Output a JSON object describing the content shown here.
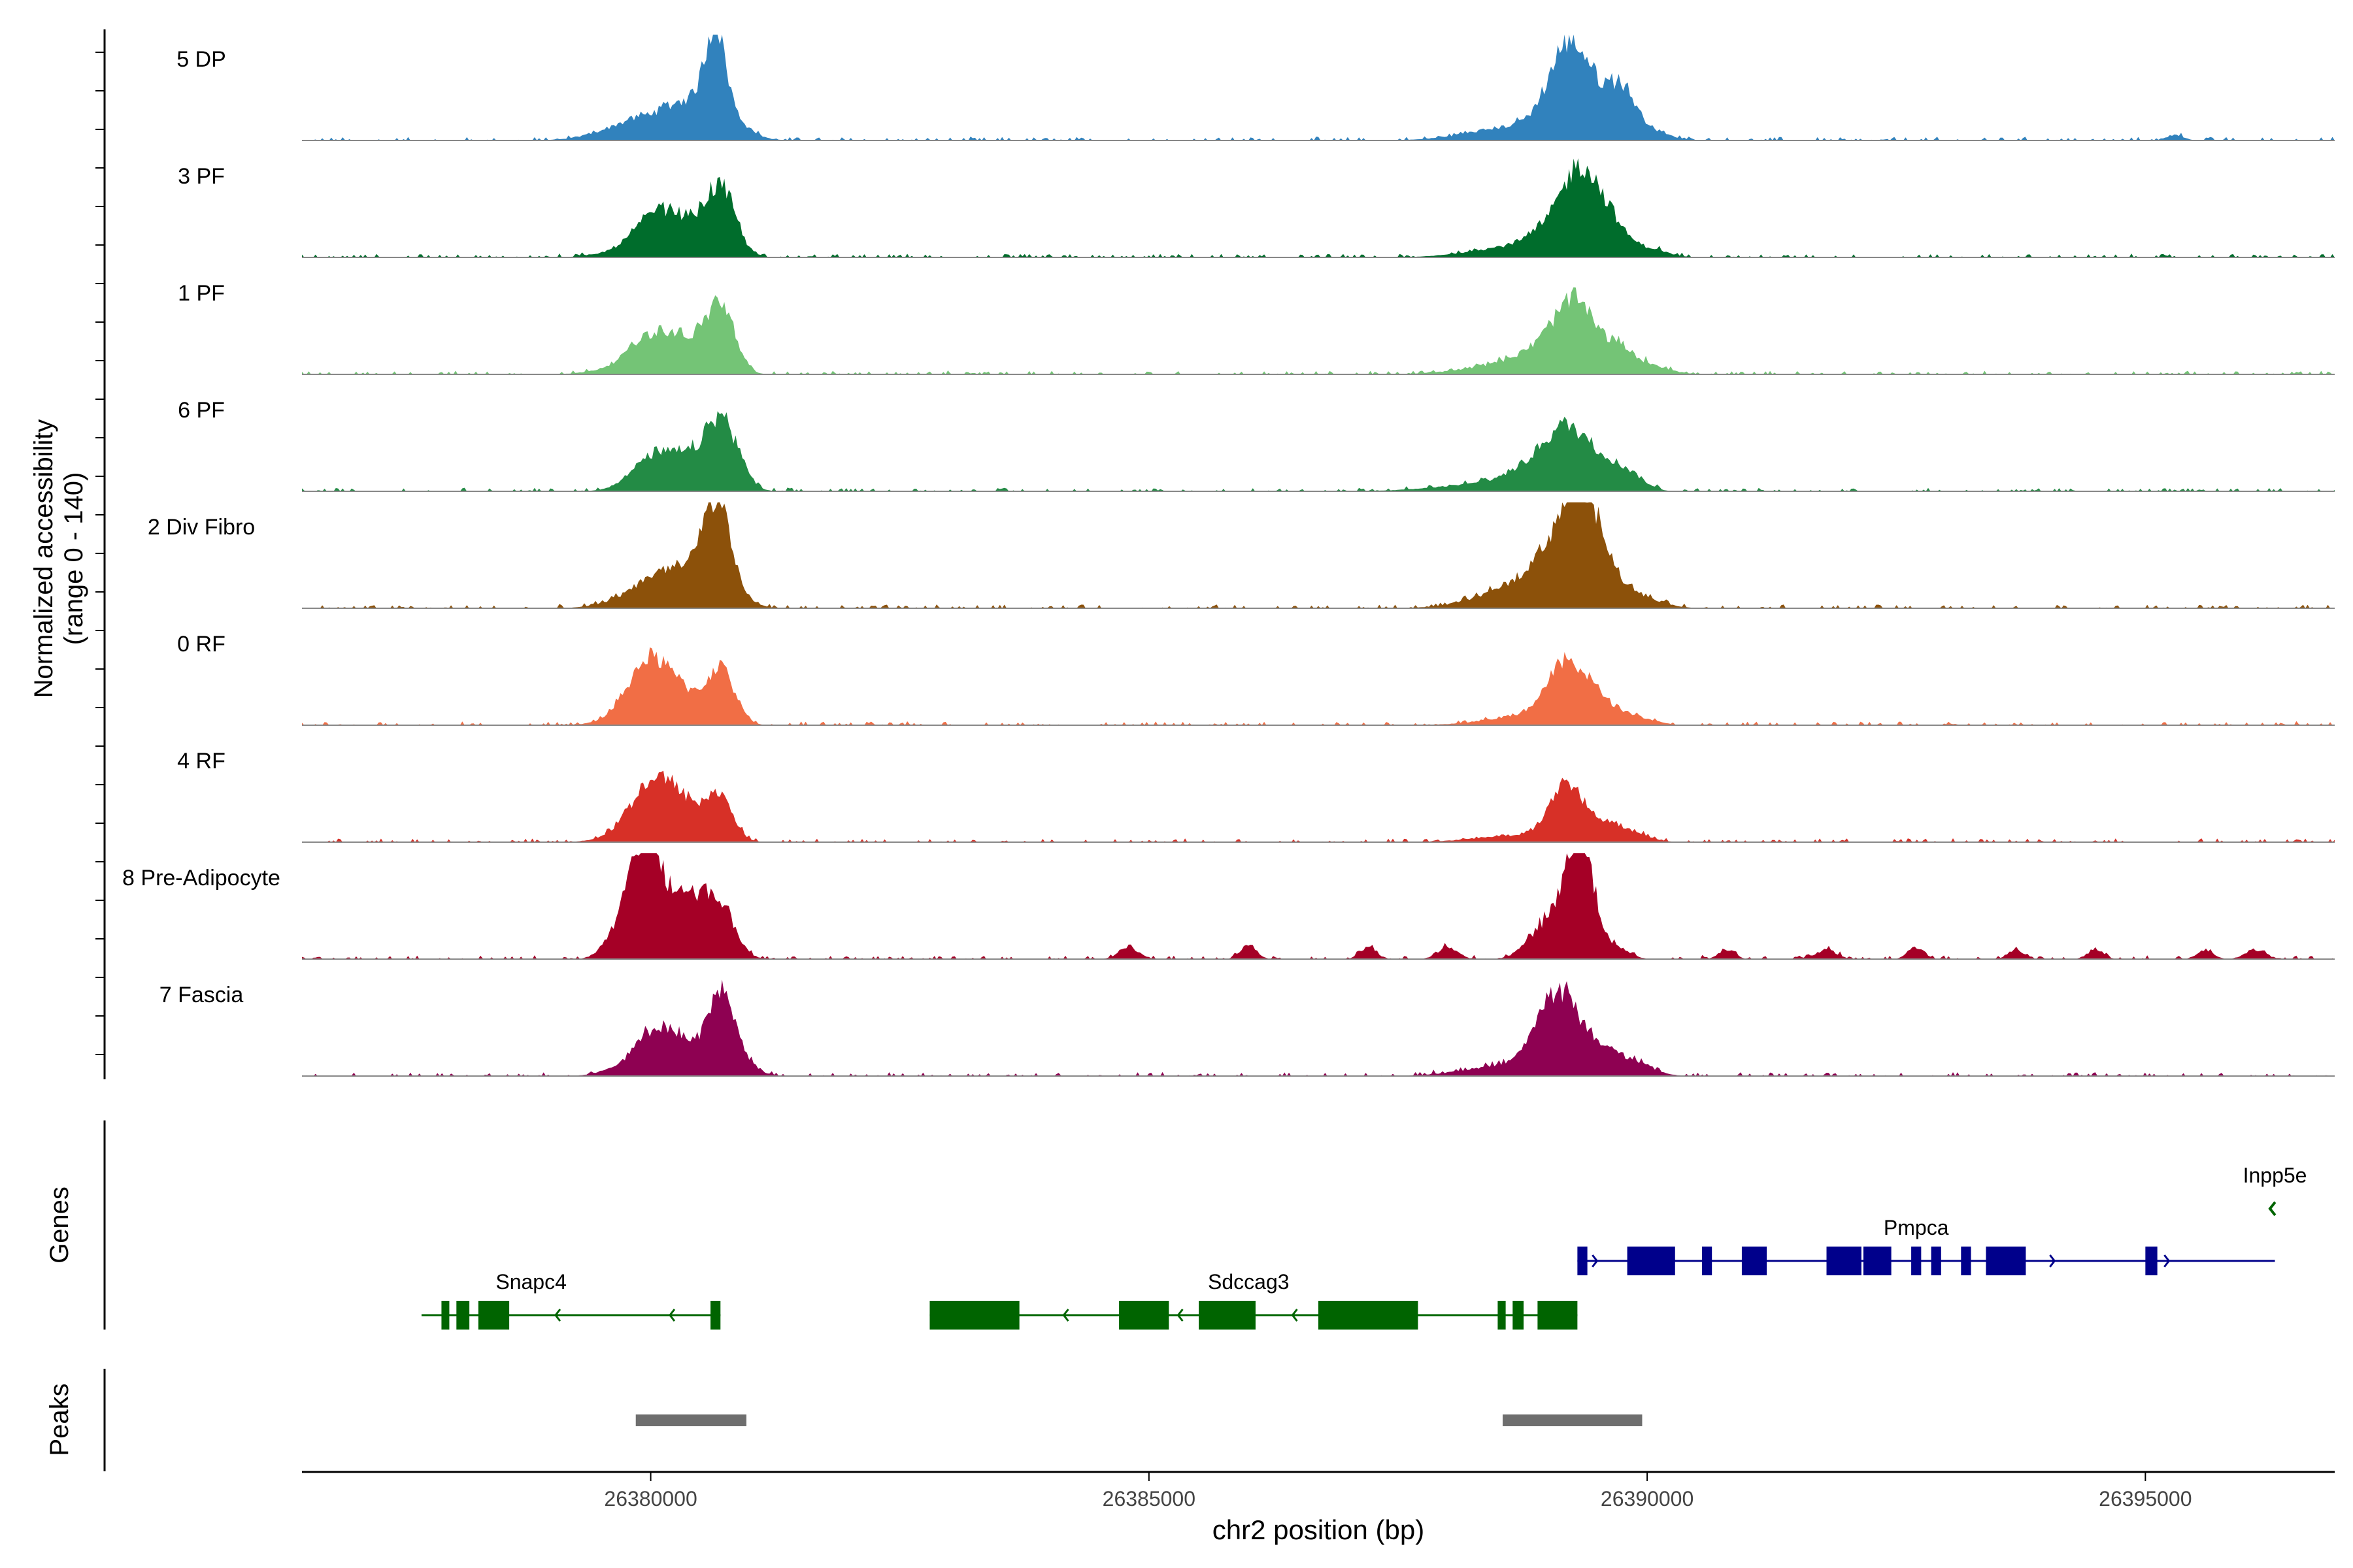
{
  "chart_data": {
    "type": "area",
    "title": "",
    "ylabel_line1": "Normalized accessibility",
    "ylabel_line2": "(range 0 - 140)",
    "yrange": [
      0,
      140
    ],
    "xlabel": "chr2 position (bp)",
    "xlim": [
      26376500,
      26396900
    ],
    "xticks": [
      26380000,
      26385000,
      26390000,
      26395000
    ],
    "xtick_labels": [
      "26380000",
      "26385000",
      "26390000",
      "26395000"
    ],
    "tracks": [
      {
        "name": "5 DP",
        "color": "#3182BD",
        "noise": [
          26376500,
          26396900
        ],
        "peaks": [
          [
            26379800,
            8,
            320
          ],
          [
            26380100,
            12,
            380
          ],
          [
            26380500,
            26,
            280
          ],
          [
            26380650,
            70,
            100
          ],
          [
            26380850,
            6,
            150
          ],
          [
            26388700,
            12,
            450
          ],
          [
            26389200,
            60,
            200
          ],
          [
            26389450,
            28,
            250
          ],
          [
            26389750,
            30,
            130
          ],
          [
            26390000,
            8,
            200
          ],
          [
            26395300,
            5,
            80
          ]
        ]
      },
      {
        "name": "3 PF",
        "color": "#006D2C",
        "noise": [
          26376500,
          26396900
        ],
        "peaks": [
          [
            26380100,
            32,
            220
          ],
          [
            26380400,
            14,
            160
          ],
          [
            26380700,
            58,
            150
          ],
          [
            26379900,
            8,
            300
          ],
          [
            26388600,
            8,
            400
          ],
          [
            26389100,
            22,
            250
          ],
          [
            26389350,
            62,
            180
          ],
          [
            26389650,
            22,
            140
          ],
          [
            26390000,
            8,
            180
          ]
        ]
      },
      {
        "name": "1 PF",
        "color": "#74C476",
        "noise": [
          26376500,
          26396900
        ],
        "peaks": [
          [
            26380050,
            30,
            230
          ],
          [
            26380400,
            18,
            170
          ],
          [
            26380700,
            58,
            140
          ],
          [
            26379800,
            6,
            300
          ],
          [
            26388700,
            10,
            450
          ],
          [
            26389050,
            18,
            250
          ],
          [
            26389300,
            48,
            190
          ],
          [
            26389700,
            18,
            150
          ],
          [
            26390000,
            8,
            200
          ]
        ]
      },
      {
        "name": "6 PF",
        "color": "#238B45",
        "noise": [
          26376500,
          26396900
        ],
        "peaks": [
          [
            26380050,
            30,
            230
          ],
          [
            26380400,
            18,
            170
          ],
          [
            26380700,
            58,
            150
          ],
          [
            26380900,
            8,
            120
          ],
          [
            26388400,
            6,
            500
          ],
          [
            26388800,
            12,
            250
          ],
          [
            26389200,
            50,
            230
          ],
          [
            26389600,
            16,
            180
          ],
          [
            26389850,
            10,
            150
          ]
        ]
      },
      {
        "name": "2 Div Fibro",
        "color": "#8C510A",
        "noise": [
          26376500,
          26396900
        ],
        "peaks": [
          [
            26379950,
            12,
            300
          ],
          [
            26380300,
            28,
            280
          ],
          [
            26380650,
            78,
            130
          ],
          [
            26380850,
            10,
            150
          ],
          [
            26388700,
            16,
            400
          ],
          [
            26389150,
            42,
            280
          ],
          [
            26389350,
            72,
            180
          ],
          [
            26389700,
            12,
            200
          ],
          [
            26390000,
            6,
            200
          ]
        ]
      },
      {
        "name": "0 RF",
        "color": "#F16E45",
        "noise": [
          26376500,
          26396900
        ],
        "peaks": [
          [
            26380000,
            52,
            210
          ],
          [
            26380350,
            18,
            160
          ],
          [
            26380700,
            48,
            140
          ],
          [
            26379800,
            6,
            250
          ],
          [
            26388800,
            8,
            400
          ],
          [
            26389200,
            48,
            200
          ],
          [
            26389550,
            14,
            180
          ],
          [
            26389900,
            6,
            180
          ]
        ]
      },
      {
        "name": "4 RF",
        "color": "#D73027",
        "noise": [
          26376500,
          26396900
        ],
        "peaks": [
          [
            26380050,
            50,
            220
          ],
          [
            26380400,
            20,
            160
          ],
          [
            26380700,
            38,
            130
          ],
          [
            26379800,
            6,
            250
          ],
          [
            26388700,
            6,
            400
          ],
          [
            26389200,
            48,
            170
          ],
          [
            26389600,
            12,
            160
          ],
          [
            26389850,
            6,
            180
          ]
        ]
      },
      {
        "name": "8 Pre-Adipocyte",
        "color": "#A50026",
        "noise": [
          26376500,
          26396900
        ],
        "peaks": [
          [
            26379900,
            75,
            150
          ],
          [
            26380200,
            48,
            260
          ],
          [
            26380500,
            20,
            200
          ],
          [
            26380700,
            30,
            150
          ],
          [
            26379600,
            10,
            120
          ],
          [
            26388900,
            18,
            150
          ],
          [
            26389200,
            48,
            160
          ],
          [
            26389350,
            80,
            120
          ],
          [
            26389700,
            10,
            120
          ],
          [
            26384800,
            10,
            100
          ],
          [
            26386000,
            12,
            80
          ],
          [
            26387200,
            10,
            80
          ],
          [
            26388000,
            10,
            100
          ],
          [
            26390800,
            8,
            80
          ],
          [
            26391800,
            8,
            100
          ],
          [
            26392700,
            10,
            80
          ],
          [
            26393700,
            8,
            80
          ],
          [
            26394500,
            8,
            80
          ],
          [
            26395600,
            8,
            80
          ],
          [
            26396100,
            8,
            100
          ]
        ]
      },
      {
        "name": "7 Fascia",
        "color": "#8E0152",
        "noise": [
          26376500,
          26396900
        ],
        "peaks": [
          [
            26379900,
            14,
            250
          ],
          [
            26380100,
            30,
            180
          ],
          [
            26380400,
            18,
            160
          ],
          [
            26380700,
            62,
            130
          ],
          [
            26380900,
            12,
            150
          ],
          [
            26388700,
            10,
            450
          ],
          [
            26389100,
            65,
            200
          ],
          [
            26389500,
            18,
            200
          ],
          [
            26389850,
            10,
            200
          ]
        ]
      }
    ],
    "genes_label": "Genes",
    "genes": [
      {
        "name": "Snapc4",
        "strand": "-",
        "color": "#006400",
        "start": 26377700,
        "end": 26380700,
        "label_pos": 26378800,
        "exons": [
          [
            26377900,
            26377960
          ],
          [
            26378050,
            26378180
          ],
          [
            26378270,
            26378580
          ],
          [
            26380600,
            26380700
          ]
        ],
        "row": 2
      },
      {
        "name": "Sdccag3",
        "strand": "-",
        "color": "#006400",
        "start": 26382800,
        "end": 26389300,
        "label_pos": 26386000,
        "exons": [
          [
            26382800,
            26383700
          ],
          [
            26384700,
            26385200
          ],
          [
            26385500,
            26386070
          ],
          [
            26386700,
            26387700
          ],
          [
            26388500,
            26388580
          ],
          [
            26388650,
            26388760
          ],
          [
            26388900,
            26389300
          ]
        ],
        "row": 2
      },
      {
        "name": "Pmpca",
        "strand": "+",
        "color": "#00008B",
        "start": 26389300,
        "end": 26396300,
        "label_pos": 26392700,
        "exons": [
          [
            26389300,
            26389400
          ],
          [
            26389800,
            26390280
          ],
          [
            26390550,
            26390650
          ],
          [
            26390950,
            26391200
          ],
          [
            26391800,
            26392150
          ],
          [
            26392170,
            26392450
          ],
          [
            26392650,
            26392750
          ],
          [
            26392850,
            26392950
          ],
          [
            26393150,
            26393250
          ],
          [
            26393400,
            26393800
          ],
          [
            26395000,
            26395120
          ]
        ],
        "row": 1
      },
      {
        "name": "Inpp5e",
        "strand": "-",
        "color": "#006400",
        "start": 26396250,
        "end": 26396320,
        "label_pos": 26396300,
        "exons": [],
        "row": 0
      }
    ],
    "peaks_label": "Peaks",
    "peaks": [
      [
        26379850,
        26380960
      ],
      [
        26388550,
        26389950
      ]
    ]
  }
}
